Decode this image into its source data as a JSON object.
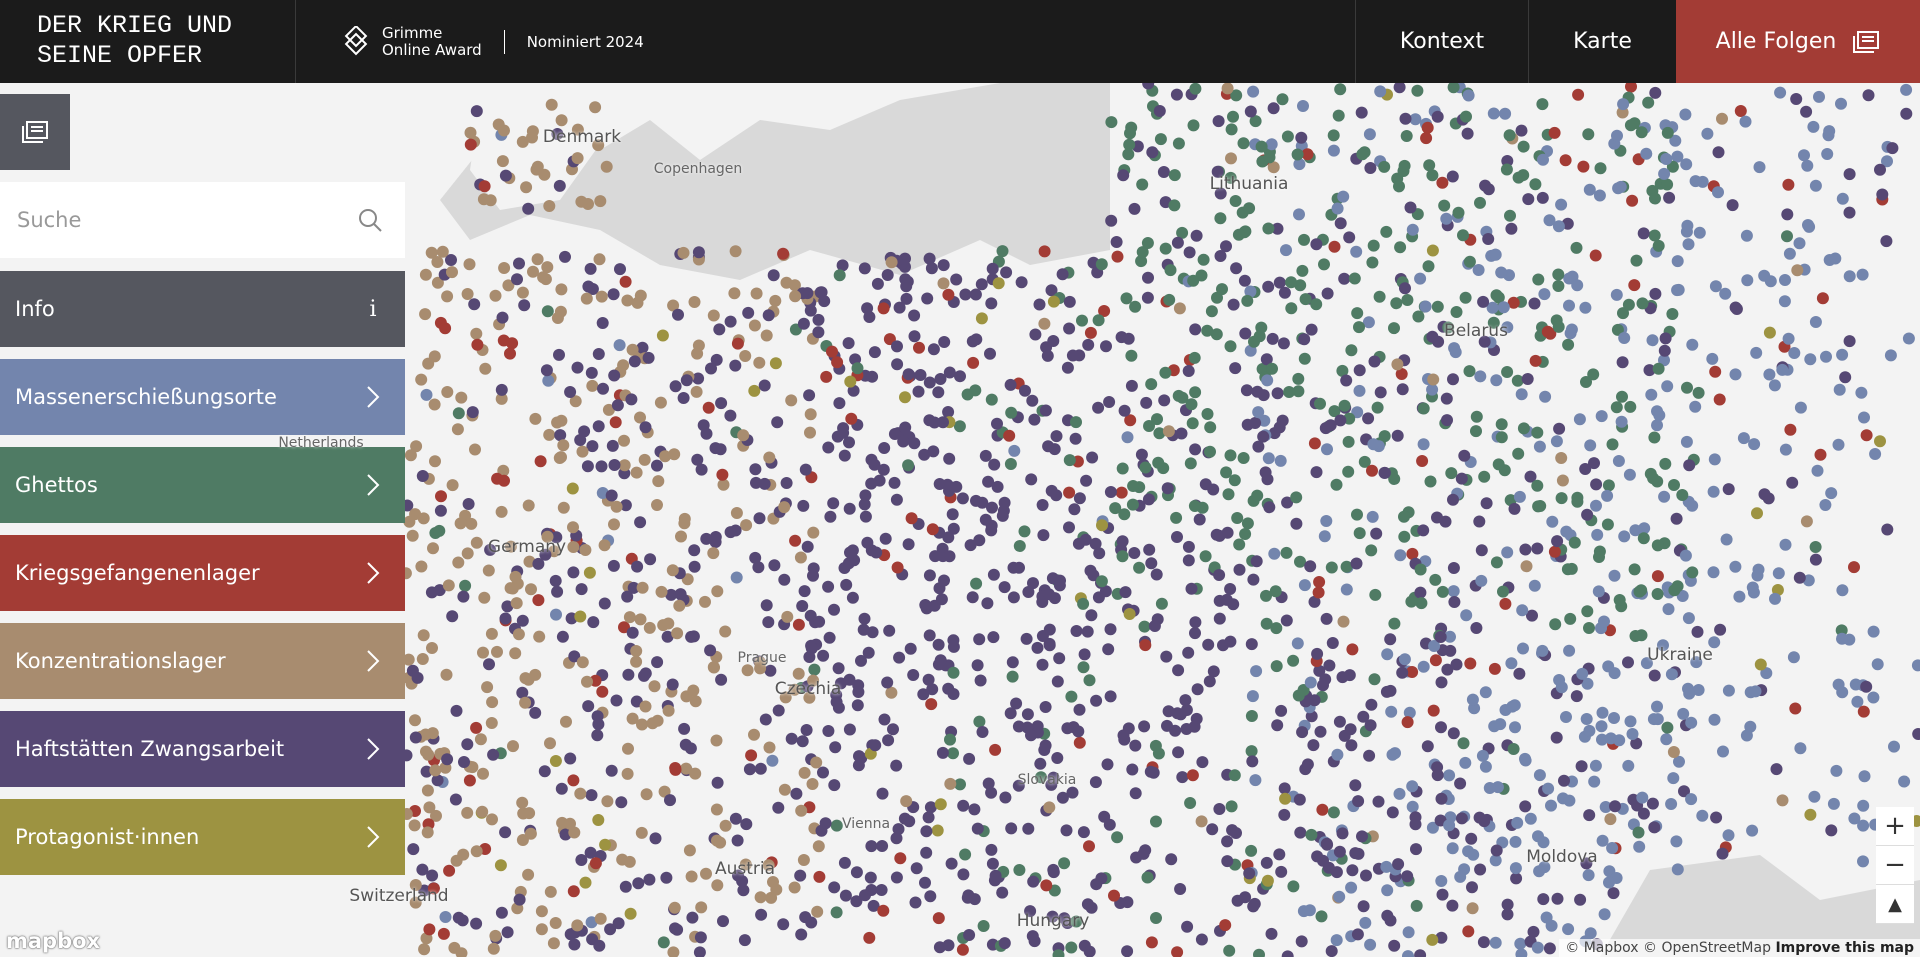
{
  "header": {
    "title_lines": [
      "DER KRIEG UND",
      "SEINE OPFER"
    ],
    "award": {
      "line1": "Grimme",
      "line2": "Online Award"
    },
    "nominated": "Nominiert 2024"
  },
  "nav": [
    {
      "label": "Kontext"
    },
    {
      "label": "Karte"
    },
    {
      "label": "Alle Folgen"
    }
  ],
  "search_placeholder": "Suche",
  "sidebar": [
    {
      "label": "Info",
      "color": "#55575f"
    },
    {
      "label": "Massenerschießungsorte",
      "color": "#7385ad"
    },
    {
      "label": "Ghettos",
      "color": "#4f7b64"
    },
    {
      "label": "Kriegsgefangenenlager",
      "color": "#a33c35"
    },
    {
      "label": "Konzentrationslager",
      "color": "#a88c6f"
    },
    {
      "label": "Haftstätten Zwangsarbeit",
      "color": "#564874"
    },
    {
      "label": "Protagonist·innen",
      "color": "#9d9341"
    }
  ],
  "map": {
    "labels": [
      "Denmark",
      "Copenhagen",
      "Lithuania",
      "Belarus",
      "Germany",
      "Netherlands",
      "Prague",
      "Czechia",
      "Slovakia",
      "Vienna",
      "Austria",
      "Switzerland",
      "Hungary",
      "Moldova",
      "Ukraine"
    ]
  },
  "logo": "mapbox",
  "attribution": {
    "mapbox": "© Mapbox",
    "osm": "© OpenStreetMap",
    "improve": "Improve this map"
  }
}
